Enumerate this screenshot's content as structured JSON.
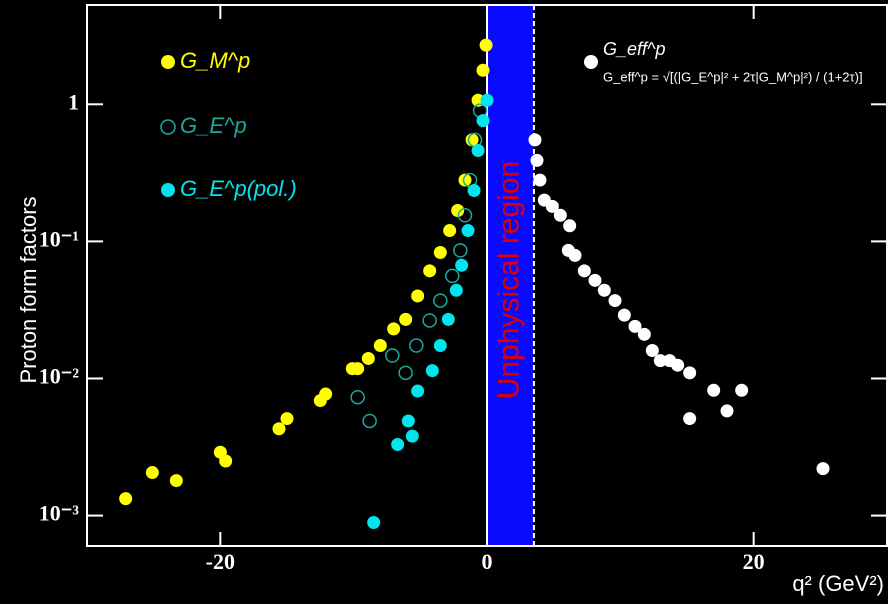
{
  "chart_data": {
    "type": "scatter",
    "x_label": "q² (GeV²)",
    "y_label": "Proton form factors",
    "annotation": "Unphysical region",
    "unphysical_region": [
      0,
      3.52
    ],
    "formula": "G_eff^p = √[(|G_E^p|² + 2τ|G_M^p|²) / (1+2τ)]",
    "xlim": [
      -30,
      30
    ],
    "xticks": [
      -20,
      0,
      20
    ],
    "ylim": [
      0.0006,
      5.3
    ],
    "log_y": true,
    "yticks": [
      {
        "value": 1,
        "label": "1"
      },
      {
        "value": 0.1,
        "label": "10⁻¹"
      },
      {
        "value": 0.01,
        "label": "10⁻²"
      },
      {
        "value": 0.001,
        "label": "10⁻³"
      }
    ],
    "series": [
      {
        "name": "G_M^p",
        "color": "#ffff00",
        "marker": "filled",
        "x": [
          -27.1,
          -25.1,
          -23.3,
          -20,
          -19.6,
          -15.6,
          -15.0,
          -12.5,
          -12.1,
          -10.1,
          -9.7,
          -8.9,
          -8.0,
          -7.0,
          -6.1,
          -5.2,
          -4.3,
          -3.5,
          -2.8,
          -2.2,
          -1.65,
          -1.12,
          -0.67,
          -0.3,
          -0.07
        ],
        "y": [
          0.00133,
          0.00206,
          0.0018,
          0.0029,
          0.0025,
          0.0043,
          0.0051,
          0.0069,
          0.0077,
          0.0118,
          0.0118,
          0.014,
          0.0174,
          0.023,
          0.027,
          0.04,
          0.061,
          0.083,
          0.12,
          0.168,
          0.28,
          0.55,
          1.07,
          1.77,
          2.7
        ]
      },
      {
        "name": "G_E^p",
        "color": "#1aa8a0",
        "marker": "open",
        "x": [
          -9.7,
          -8.8,
          -7.1,
          -6.1,
          -5.3,
          -4.3,
          -3.5,
          -2.6,
          -2.0,
          -1.65,
          -1.27,
          -0.9,
          -0.52
        ],
        "y": [
          0.0073,
          0.0049,
          0.0147,
          0.011,
          0.0174,
          0.0265,
          0.037,
          0.056,
          0.086,
          0.155,
          0.28,
          0.55,
          0.9
        ]
      },
      {
        "name": "G_E^p(pol.)",
        "color": "#00e5ee",
        "marker": "filled",
        "x": [
          -8.5,
          -6.7,
          -5.6,
          -5.9,
          -5.2,
          -4.1,
          -3.5,
          -2.9,
          -2.3,
          -1.9,
          -1.42,
          -0.97,
          -0.67,
          -0.3,
          0
        ],
        "y": [
          0.00089,
          0.0033,
          0.0038,
          0.0049,
          0.0081,
          0.0114,
          0.0174,
          0.027,
          0.044,
          0.067,
          0.12,
          0.235,
          0.46,
          0.76,
          1.07
        ]
      },
      {
        "name": "G_eff^p",
        "color": "#ffffff",
        "marker": "filled",
        "x": [
          3.6,
          3.75,
          3.97,
          4.3,
          4.9,
          5.5,
          6.2,
          6.1,
          6.6,
          7.3,
          8.1,
          8.8,
          9.6,
          10.3,
          11.1,
          11.8,
          12.4,
          13.0,
          13.7,
          14.3,
          15.2,
          15.2,
          17.0,
          18.0,
          19.1,
          25.2
        ],
        "y": [
          0.55,
          0.39,
          0.28,
          0.2,
          0.18,
          0.155,
          0.13,
          0.086,
          0.079,
          0.061,
          0.052,
          0.044,
          0.037,
          0.029,
          0.024,
          0.021,
          0.016,
          0.0135,
          0.0135,
          0.0125,
          0.011,
          0.0051,
          0.0082,
          0.0058,
          0.0082,
          0.0022
        ]
      }
    ]
  }
}
